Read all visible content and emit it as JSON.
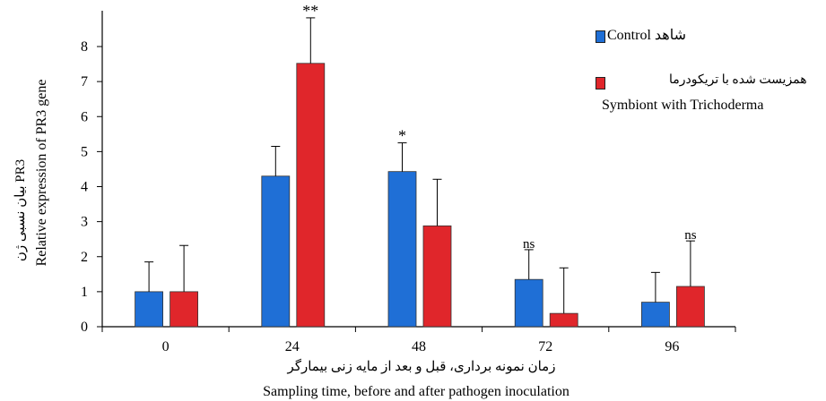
{
  "chart_data": {
    "type": "bar",
    "categories": [
      "0",
      "24",
      "48",
      "72",
      "96"
    ],
    "series": [
      {
        "name": "شاهد Control",
        "color": "#1f6fd6",
        "values": [
          1.0,
          4.3,
          4.43,
          1.35,
          0.7
        ],
        "error": [
          0.85,
          0.85,
          0.82,
          0.85,
          0.85
        ]
      },
      {
        "name": "همزیست شده با تریکودرما Symbiont with Trichoderma",
        "color": "#e0262b",
        "values": [
          1.0,
          7.52,
          2.88,
          0.38,
          1.15
        ],
        "error": [
          1.32,
          1.3,
          1.33,
          1.3,
          1.3
        ]
      }
    ],
    "significance": [
      {
        "category": "24",
        "series": 1,
        "text": "**"
      },
      {
        "category": "48",
        "series": 0,
        "text": "*"
      },
      {
        "category": "72",
        "series": 0,
        "text": "ns"
      },
      {
        "category": "96",
        "series": 1,
        "text": "ns"
      }
    ],
    "ylim": [
      0,
      8
    ],
    "yticks": [
      "0",
      "1",
      "2",
      "3",
      "4",
      "5",
      "6",
      "7",
      "8"
    ],
    "ylabel_fa": "بیان نسبی ژن PR3",
    "ylabel_en": "Relative expression of PR3 gene",
    "xlabel_fa": "زمان نمونه برداری، قبل و بعد از مایه زنی بیمارگر",
    "xlabel_en": "Sampling time, before and after pathogen inoculation",
    "grid": false,
    "legend_position": "top-right"
  },
  "legend": {
    "control_fa": "شاهد",
    "control_en": "Control",
    "symbiont_fa": "همزیست شده با تریکودرما",
    "symbiont_en": "Symbiont with Trichoderma"
  }
}
